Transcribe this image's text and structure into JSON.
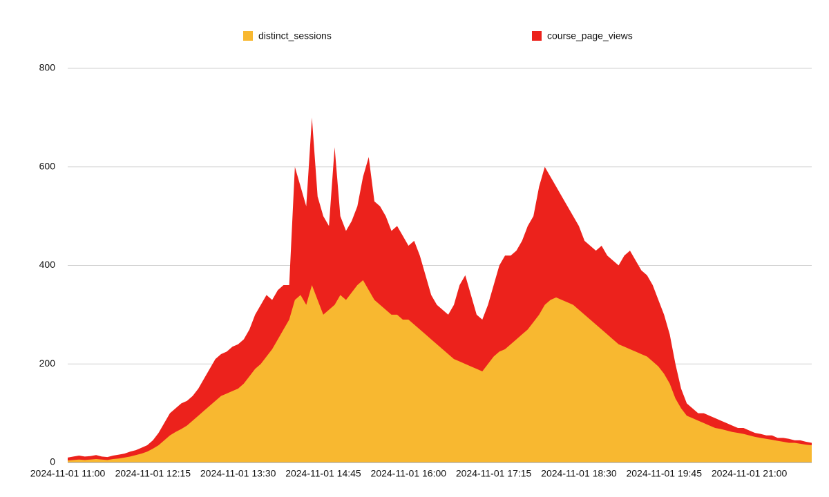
{
  "chart_data": {
    "type": "stacked_area",
    "categories": [
      "2024-11-01 11:00",
      null,
      null,
      null,
      null,
      null,
      null,
      null,
      null,
      null,
      null,
      null,
      null,
      null,
      null,
      "2024-11-01 12:15",
      null,
      null,
      null,
      null,
      null,
      null,
      null,
      null,
      null,
      null,
      null,
      null,
      null,
      null,
      "2024-11-01 13:30",
      null,
      null,
      null,
      null,
      null,
      null,
      null,
      null,
      null,
      null,
      null,
      null,
      null,
      null,
      "2024-11-01 14:45",
      null,
      null,
      null,
      null,
      null,
      null,
      null,
      null,
      null,
      null,
      null,
      null,
      null,
      null,
      "2024-11-01 16:00",
      null,
      null,
      null,
      null,
      null,
      null,
      null,
      null,
      null,
      null,
      null,
      null,
      null,
      null,
      "2024-11-01 17:15",
      null,
      null,
      null,
      null,
      null,
      null,
      null,
      null,
      null,
      null,
      null,
      null,
      null,
      null,
      "2024-11-01 18:30",
      null,
      null,
      null,
      null,
      null,
      null,
      null,
      null,
      null,
      null,
      null,
      null,
      null,
      null,
      "2024-11-01 19:45",
      null,
      null,
      null,
      null,
      null,
      null,
      null,
      null,
      null,
      null,
      null,
      null,
      null,
      null,
      "2024-11-01 21:00",
      null,
      null,
      null,
      null,
      null,
      null,
      null,
      null,
      null,
      null,
      null
    ],
    "series": [
      {
        "name": "distinct_sessions",
        "color": "#f8b830",
        "values": [
          4,
          5,
          6,
          5,
          6,
          7,
          6,
          5,
          7,
          8,
          10,
          12,
          15,
          18,
          22,
          28,
          35,
          45,
          55,
          62,
          68,
          75,
          85,
          95,
          105,
          115,
          125,
          135,
          140,
          145,
          150,
          160,
          175,
          190,
          200,
          215,
          230,
          250,
          270,
          290,
          330,
          340,
          320,
          360,
          330,
          300,
          310,
          320,
          340,
          330,
          345,
          360,
          370,
          350,
          330,
          320,
          310,
          300,
          300,
          290,
          290,
          280,
          270,
          260,
          250,
          240,
          230,
          220,
          210,
          205,
          200,
          195,
          190,
          185,
          200,
          215,
          225,
          230,
          240,
          250,
          260,
          270,
          285,
          300,
          320,
          330,
          335,
          330,
          325,
          320,
          310,
          300,
          290,
          280,
          270,
          260,
          250,
          240,
          235,
          230,
          225,
          220,
          215,
          205,
          195,
          180,
          160,
          130,
          110,
          95,
          90,
          85,
          80,
          75,
          70,
          68,
          65,
          62,
          60,
          58,
          55,
          52,
          50,
          48,
          46,
          44,
          42,
          40,
          40,
          38,
          36,
          35
        ]
      },
      {
        "name": "course_page_views",
        "color": "#ec221c",
        "values": [
          6,
          7,
          8,
          7,
          7,
          8,
          6,
          6,
          7,
          8,
          8,
          10,
          10,
          12,
          13,
          17,
          25,
          35,
          45,
          48,
          52,
          50,
          50,
          55,
          65,
          75,
          85,
          85,
          85,
          90,
          90,
          90,
          95,
          110,
          120,
          125,
          100,
          100,
          90,
          70,
          270,
          220,
          200,
          340,
          210,
          200,
          170,
          320,
          160,
          140,
          145,
          160,
          210,
          270,
          200,
          200,
          190,
          170,
          180,
          170,
          150,
          170,
          150,
          120,
          90,
          80,
          80,
          80,
          110,
          155,
          180,
          145,
          110,
          105,
          120,
          145,
          175,
          190,
          180,
          180,
          190,
          210,
          215,
          260,
          280,
          250,
          225,
          210,
          195,
          180,
          170,
          150,
          150,
          150,
          170,
          160,
          160,
          160,
          185,
          200,
          185,
          170,
          165,
          155,
          135,
          120,
          100,
          70,
          40,
          25,
          20,
          15,
          20,
          20,
          20,
          17,
          15,
          13,
          10,
          12,
          10,
          8,
          8,
          7,
          9,
          6,
          8,
          8,
          5,
          7,
          6,
          5
        ]
      }
    ],
    "ylim": [
      0,
      800
    ],
    "yticks": [
      0,
      200,
      400,
      600,
      800
    ],
    "grid": true,
    "legend": "top"
  }
}
